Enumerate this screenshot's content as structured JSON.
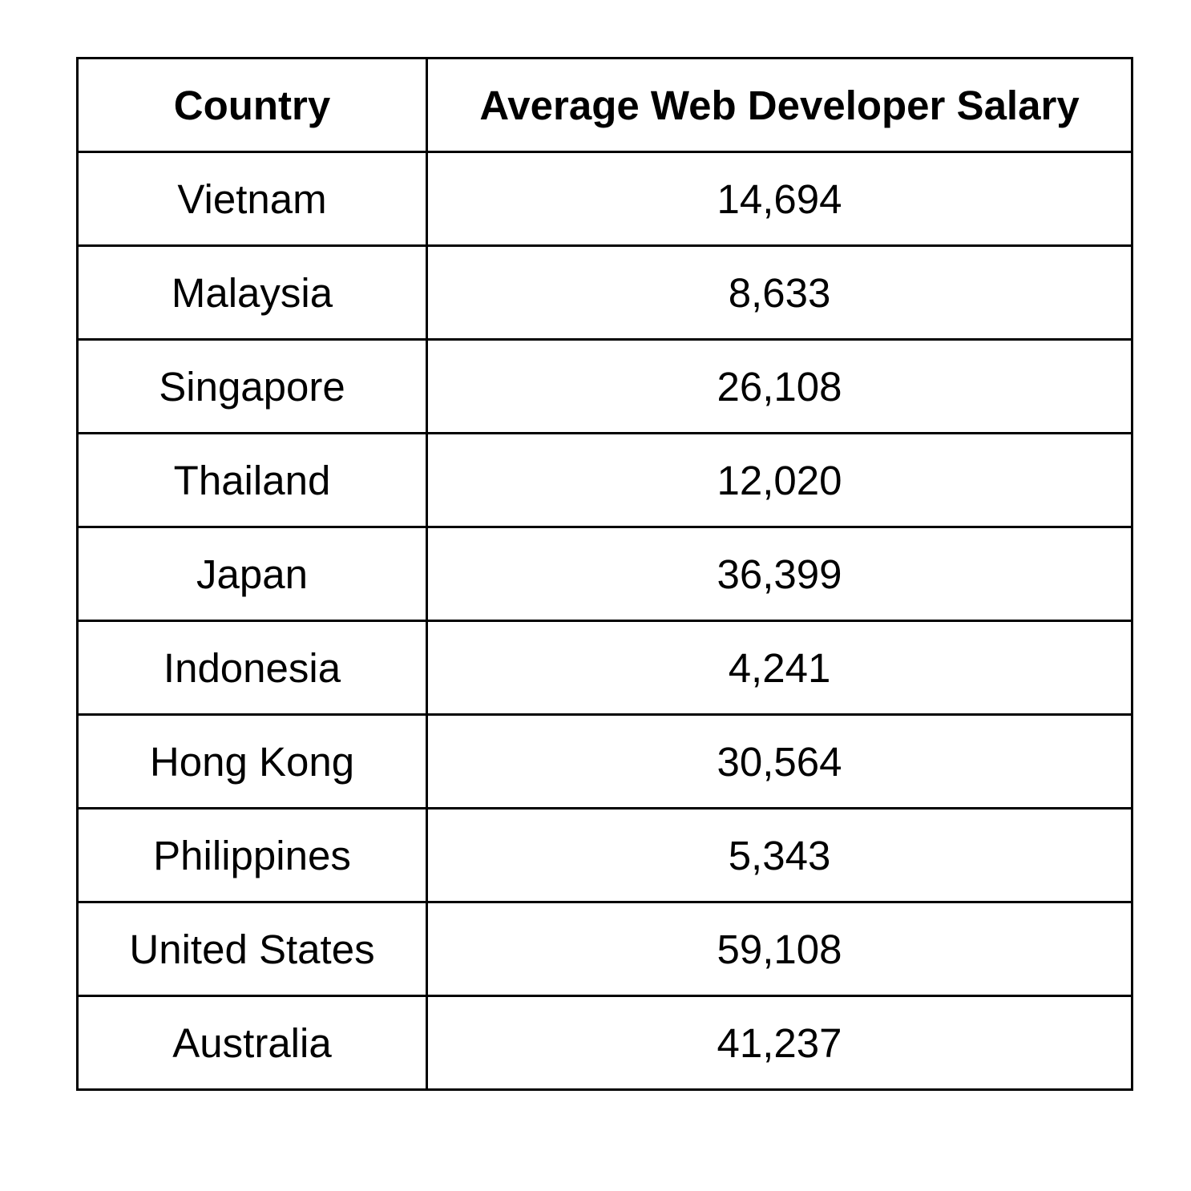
{
  "chart_data": {
    "type": "table",
    "columns": [
      "Country",
      "Average Web Developer Salary"
    ],
    "rows": [
      [
        "Vietnam",
        "14,694"
      ],
      [
        "Malaysia",
        "8,633"
      ],
      [
        "Singapore",
        "26,108"
      ],
      [
        "Thailand",
        "12,020"
      ],
      [
        "Japan",
        "36,399"
      ],
      [
        "Indonesia",
        "4,241"
      ],
      [
        "Hong Kong",
        "30,564"
      ],
      [
        "Philippines",
        "5,343"
      ],
      [
        "United States",
        "59,108"
      ],
      [
        "Australia",
        "41,237"
      ]
    ]
  }
}
